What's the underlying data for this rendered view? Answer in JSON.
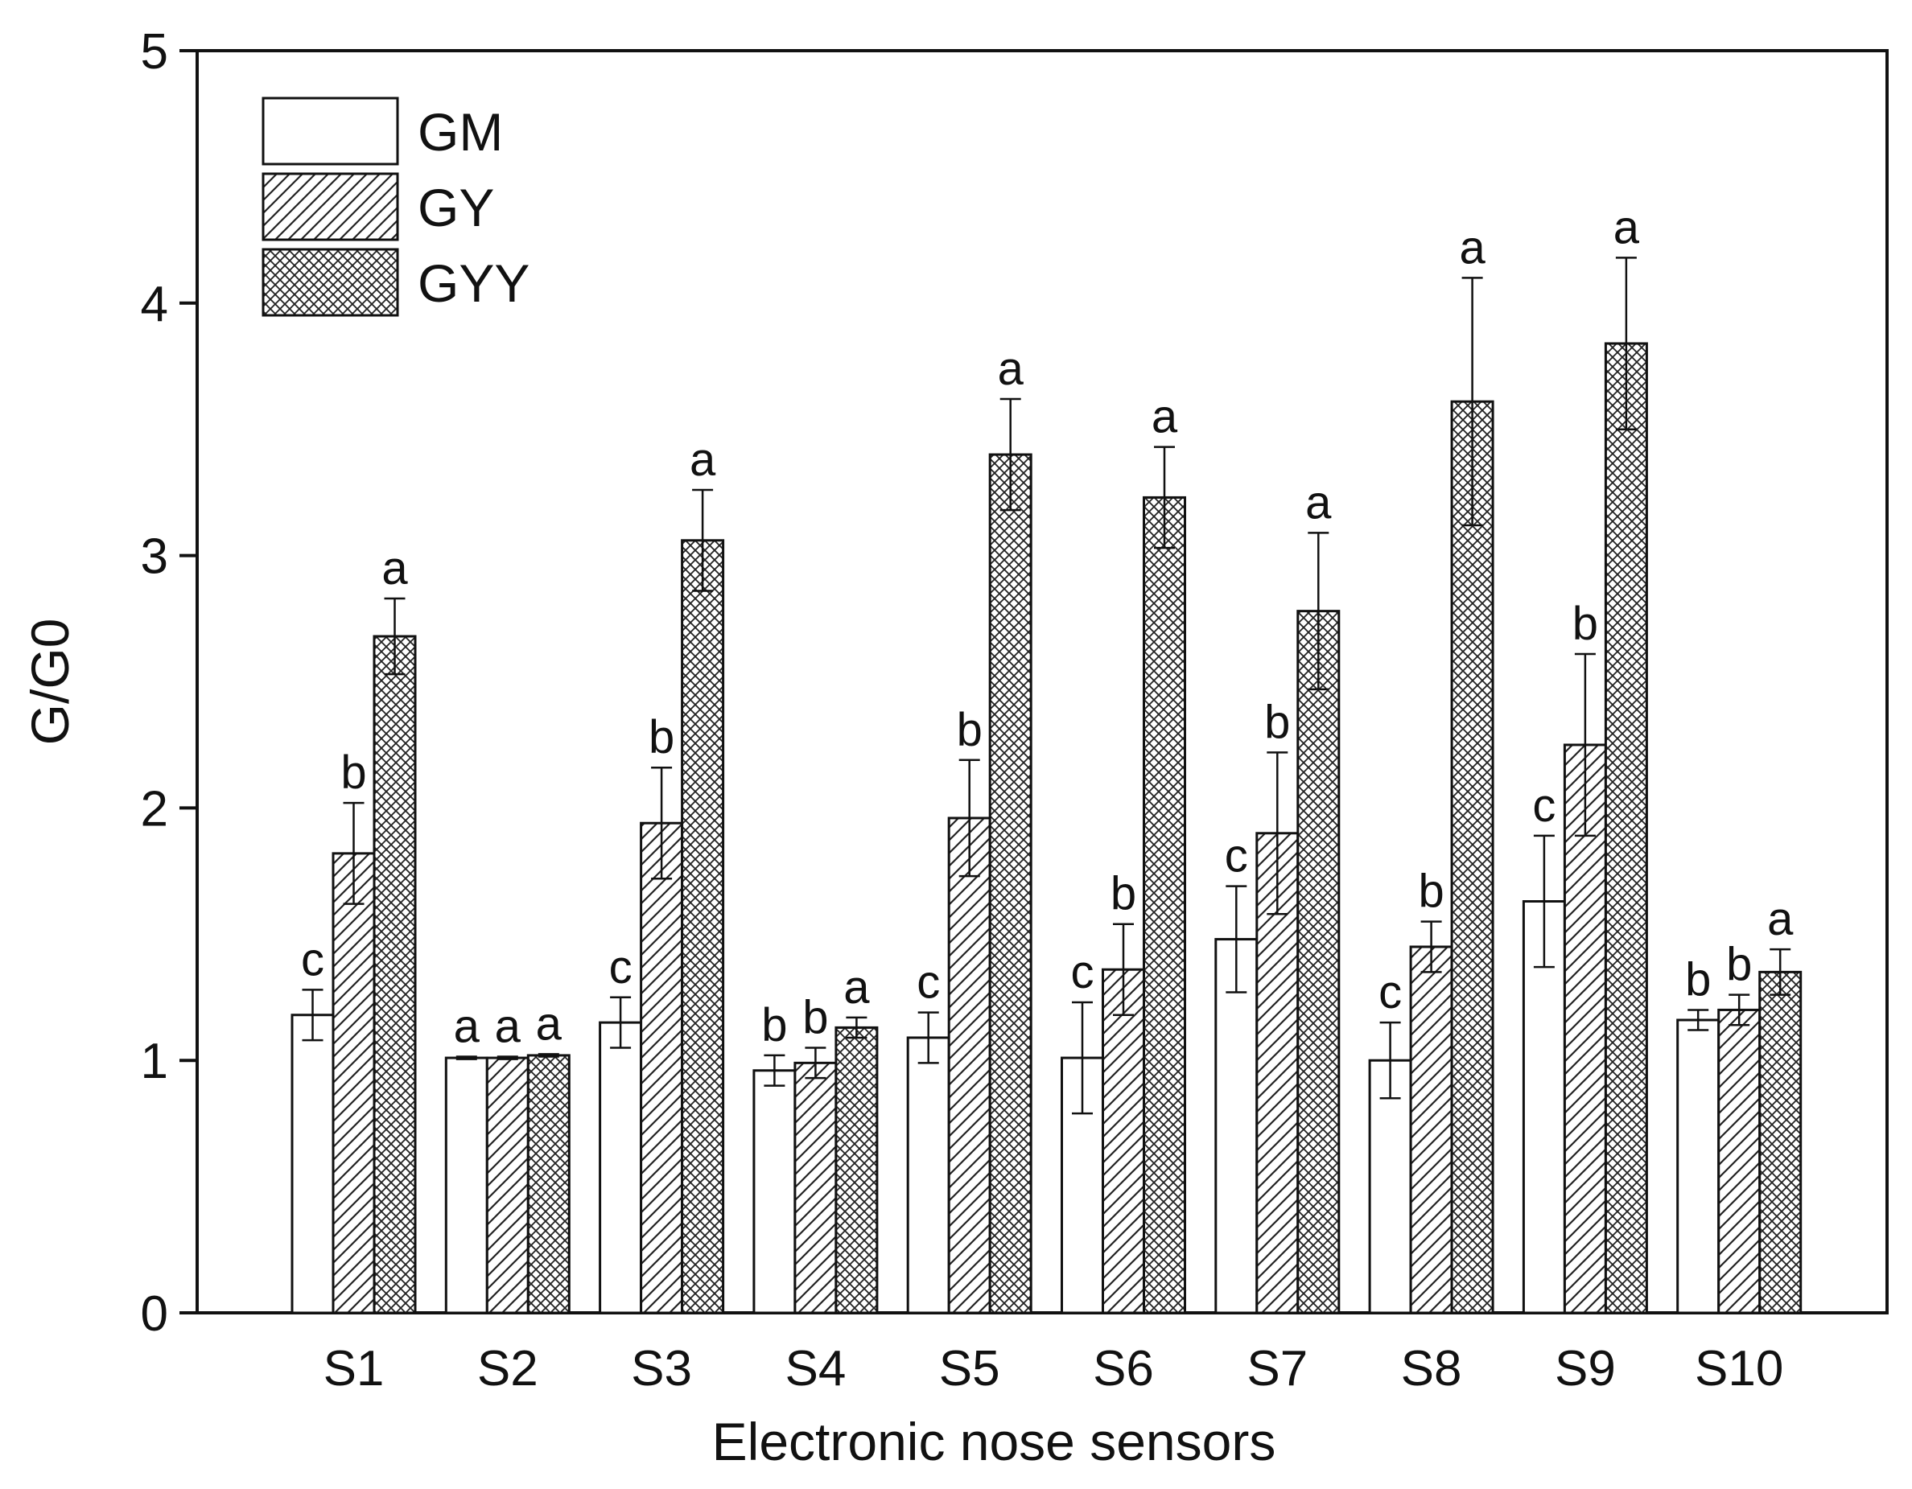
{
  "chart_data": {
    "type": "bar",
    "title": "",
    "xlabel": "Electronic nose sensors",
    "ylabel": "G/G0",
    "ylim": [
      0,
      5
    ],
    "yticks": [
      "0",
      "1",
      "2",
      "3",
      "4",
      "5"
    ],
    "categories": [
      "S1",
      "S2",
      "S3",
      "S4",
      "S5",
      "S6",
      "S7",
      "S8",
      "S9",
      "S10"
    ],
    "legend": {
      "position": "top-left"
    },
    "grid": false,
    "series": [
      {
        "name": "GM",
        "pattern": "none",
        "values": [
          1.18,
          1.01,
          1.15,
          0.96,
          1.09,
          1.01,
          1.48,
          1.0,
          1.63,
          1.16
        ],
        "errors": [
          0.1,
          0.005,
          0.1,
          0.06,
          0.1,
          0.22,
          0.21,
          0.15,
          0.26,
          0.04
        ],
        "labels": [
          "c",
          "a",
          "c",
          "b",
          "c",
          "c",
          "c",
          "c",
          "c",
          "b"
        ]
      },
      {
        "name": "GY",
        "pattern": "hatch",
        "values": [
          1.82,
          1.01,
          1.94,
          0.99,
          1.96,
          1.36,
          1.9,
          1.45,
          2.25,
          1.2
        ],
        "errors": [
          0.2,
          0.005,
          0.22,
          0.06,
          0.23,
          0.18,
          0.32,
          0.1,
          0.36,
          0.06
        ],
        "labels": [
          "b",
          "a",
          "b",
          "b",
          "b",
          "b",
          "b",
          "b",
          "b",
          "b"
        ]
      },
      {
        "name": "GYY",
        "pattern": "crosshatch",
        "values": [
          2.68,
          1.02,
          3.06,
          1.13,
          3.4,
          3.23,
          2.78,
          3.61,
          3.84,
          1.35
        ],
        "errors": [
          0.15,
          0.005,
          0.2,
          0.04,
          0.22,
          0.2,
          0.31,
          0.49,
          0.34,
          0.09
        ],
        "labels": [
          "a",
          "a",
          "a",
          "a",
          "a",
          "a",
          "a",
          "a",
          "a",
          "a"
        ]
      }
    ]
  }
}
